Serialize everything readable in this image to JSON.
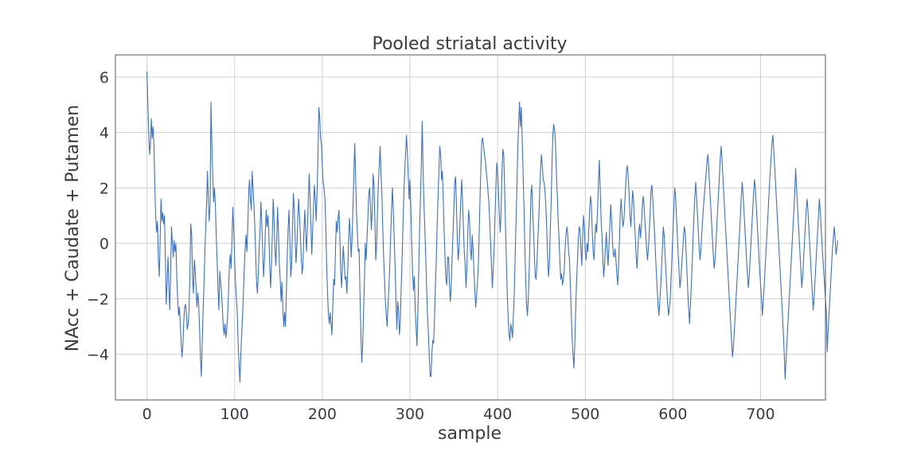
{
  "chart_data": {
    "type": "line",
    "title": "Pooled striatal activity",
    "xlabel": "sample",
    "ylabel": "NAcc + Caudate + Putamen",
    "xlim": [
      -36,
      774
    ],
    "ylim": [
      -5.65,
      6.8
    ],
    "x_ticks": [
      0,
      100,
      200,
      300,
      400,
      500,
      600,
      700
    ],
    "y_ticks": [
      -4,
      -2,
      0,
      2,
      4,
      6
    ],
    "y_tick_labels": [
      "−4",
      "−2",
      "0",
      "2",
      "4",
      "6"
    ],
    "grid": true,
    "line_color": "#3a72c4",
    "x_start": 0,
    "x_step": 1,
    "series": [
      {
        "name": "",
        "values": [
          6.2,
          5.0,
          4.0,
          3.2,
          3.6,
          4.5,
          3.8,
          4.2,
          3.5,
          2.0,
          0.9,
          0.4,
          0.8,
          -0.6,
          -1.2,
          0.1,
          1.6,
          0.8,
          1.1,
          0.7,
          1.0,
          -0.6,
          -2.2,
          -1.4,
          -0.5,
          -1.6,
          -2.4,
          -1.0,
          0.6,
          0.0,
          -0.5,
          0.1,
          -0.3,
          0.0,
          -1.2,
          -2.0,
          -2.6,
          -2.3,
          -2.9,
          -3.6,
          -4.1,
          -3.6,
          -2.8,
          -2.3,
          -2.2,
          -2.6,
          -3.1,
          -2.9,
          -2.4,
          -1.1,
          0.7,
          0.3,
          -1.3,
          -1.8,
          -0.6,
          -1.0,
          -1.6,
          -2.3,
          -1.8,
          -2.2,
          -3.1,
          -4.1,
          -4.8,
          -3.6,
          -2.5,
          -1.5,
          -0.4,
          0.6,
          1.4,
          2.6,
          1.6,
          0.8,
          1.4,
          5.1,
          3.6,
          2.5,
          1.5,
          2.0,
          1.4,
          0.3,
          -0.6,
          -1.6,
          -2.4,
          -1.0,
          -1.4,
          -1.8,
          -2.3,
          -3.0,
          -3.3,
          -2.9,
          -3.4,
          -3.1,
          -2.6,
          -1.8,
          -0.8,
          -0.4,
          -0.9,
          0.2,
          1.3,
          0.5,
          -0.6,
          -1.4,
          -2.0,
          -2.5,
          -3.6,
          -4.3,
          -5.0,
          -4.1,
          -3.3,
          -2.6,
          -1.8,
          -0.9,
          -0.2,
          0.3,
          -0.3,
          0.6,
          1.8,
          2.3,
          1.6,
          1.2,
          2.6,
          2.0,
          1.4,
          0.6,
          -0.4,
          -1.4,
          -1.8,
          -1.1,
          -0.2,
          0.5,
          1.5,
          0.7,
          -0.3,
          -1.2,
          -0.6,
          0.4,
          1.2,
          0.6,
          1.0,
          0.4,
          -0.8,
          -1.6,
          -0.8,
          0.3,
          1.6,
          0.9,
          -0.2,
          -0.8,
          0.1,
          1.3,
          0.4,
          -0.7,
          -1.3,
          -2.1,
          -1.4,
          -2.3,
          -3.0,
          -2.5,
          -3.0,
          -1.8,
          -0.5,
          0.5,
          1.2,
          0.1,
          -1.2,
          -0.8,
          0.6,
          1.8,
          1.3,
          0.2,
          -0.7,
          -0.1,
          0.9,
          1.6,
          1.0,
          0.3,
          -0.5,
          -1.1,
          -0.8,
          0.4,
          1.2,
          0.4,
          -0.3,
          0.6,
          1.5,
          2.5,
          1.7,
          0.6,
          -0.4,
          0.5,
          1.3,
          2.1,
          1.6,
          0.8,
          1.8,
          3.0,
          4.9,
          4.6,
          3.8,
          3.6,
          2.8,
          2.2,
          2.0,
          1.6,
          0.6,
          -0.8,
          -1.8,
          -2.6,
          -2.9,
          -2.5,
          -2.9,
          -3.3,
          -2.2,
          -1.3,
          -1.5,
          -0.3,
          0.8,
          0.4,
          0.9,
          1.2,
          0.3,
          -1.0,
          -1.6,
          -0.7,
          -0.1,
          -0.7,
          -1.3,
          -1.2,
          -1.8,
          -1.0,
          0.1,
          0.9,
          0.3,
          -0.5,
          0.2,
          1.3,
          2.5,
          3.6,
          2.4,
          1.1,
          0.4,
          -0.3,
          -0.2,
          -1.8,
          -3.2,
          -4.3,
          -3.7,
          -2.6,
          -1.4,
          0.0,
          -0.6,
          0.2,
          0.9,
          1.8,
          2.0,
          1.3,
          0.5,
          1.2,
          2.5,
          2.1,
          0.8,
          -0.6,
          0.0,
          1.2,
          2.2,
          2.8,
          3.5,
          2.5,
          1.8,
          0.5,
          -0.5,
          -1.3,
          -2.1,
          -2.6,
          -3.0,
          -2.2,
          -1.6,
          -0.8,
          0.3,
          1.2,
          2.0,
          1.2,
          0.2,
          -0.8,
          -2.0,
          -3.1,
          -2.1,
          -2.4,
          -3.3,
          -2.8,
          -1.6,
          -0.6,
          0.6,
          1.7,
          2.6,
          3.2,
          3.9,
          3.3,
          2.5,
          1.6,
          2.3,
          1.3,
          0.0,
          -1.0,
          -1.7,
          -1.2,
          -2.4,
          -3.0,
          -3.7,
          -2.5,
          -1.0,
          0.5,
          1.7,
          2.9,
          4.4,
          2.6,
          1.4,
          0.5,
          -0.5,
          -1.6,
          -2.6,
          -3.2,
          -4.0,
          -4.8,
          -4.8,
          -4.0,
          -3.5,
          -3.6,
          -2.7,
          -1.6,
          -0.6,
          0.6,
          1.6,
          2.6,
          3.5,
          3.2,
          2.3,
          2.6,
          1.6,
          0.4,
          -0.5,
          -1.3,
          -1.5,
          -0.5,
          -0.5,
          -1.4,
          -2.1,
          -1.6,
          -0.6,
          0.3,
          1.1,
          2.2,
          2.4,
          1.4,
          0.2,
          -0.6,
          -0.2,
          0.7,
          1.6,
          2.3,
          1.5,
          0.5,
          -0.3,
          -0.8,
          -1.6,
          -0.8,
          0.4,
          1.2,
          0.8,
          -0.2,
          -0.6,
          0.3,
          -0.2,
          -1.0,
          -1.7,
          -2.3,
          -1.9,
          -1.4,
          -0.8,
          0.4,
          1.7,
          2.8,
          3.7,
          3.8,
          3.5,
          3.2,
          3.0,
          2.6,
          2.3,
          1.9,
          1.5,
          0.8,
          0.0,
          -0.8,
          -1.6,
          -0.9,
          -0.2,
          0.9,
          2.0,
          2.9,
          2.6,
          1.8,
          1.0,
          0.4,
          1.2,
          2.6,
          3.4,
          3.2,
          2.0,
          0.6,
          -0.6,
          -1.8,
          -2.7,
          -3.3,
          -3.5,
          -2.9,
          -3.1,
          -3.4,
          -2.6,
          -1.8,
          -0.5,
          0.8,
          2.0,
          3.4,
          4.3,
          5.1,
          4.2,
          4.9,
          3.8,
          2.6,
          1.4,
          0.0,
          -1.3,
          -2.2,
          -2.6,
          -2.0,
          -1.0,
          0.3,
          1.8,
          2.1,
          1.2,
          0.4,
          -0.5,
          -1.2,
          -1.3,
          -0.6,
          0.2,
          0.9,
          1.9,
          2.7,
          3.2,
          2.8,
          2.3,
          2.2,
          1.9,
          1.4,
          0.6,
          -0.4,
          -1.2,
          -0.8,
          0.4,
          1.4,
          2.8,
          3.9,
          4.3,
          4.1,
          3.6,
          2.6,
          1.8,
          0.9,
          0.2,
          -0.6,
          -1.3,
          -1.1,
          -1.5,
          -1.3,
          -1.0,
          -0.2,
          0.3,
          0.6,
          0.3,
          -0.3,
          -0.6,
          -1.5,
          -2.5,
          -3.4,
          -4.0,
          -4.5,
          -3.7,
          -2.5,
          -1.4,
          -0.7,
          0.1,
          0.6,
          0.5,
          -0.2,
          -0.8,
          0.2,
          1.0,
          0.6,
          -0.3,
          -0.6,
          0.0,
          -0.3,
          0.5,
          1.2,
          1.7,
          1.4,
          0.4,
          -0.3,
          -0.6,
          0.2,
          0.7,
          0.4,
          1.2,
          2.2,
          3.0,
          2.0,
          0.9,
          0.3,
          -0.5,
          -1.2,
          -0.8,
          -0.1,
          0.4,
          -0.3,
          -0.8,
          -0.1,
          0.6,
          1.4,
          0.9,
          0.1,
          -0.4,
          -0.5,
          -0.2,
          -0.6,
          -1.1,
          -1.5,
          -0.8,
          0.1,
          1.2,
          1.6,
          1.0,
          0.6,
          0.8,
          1.4,
          2.0,
          2.6,
          2.8,
          2.4,
          1.8,
          1.0,
          0.6,
          1.2,
          1.9,
          1.6,
          0.8,
          0.3,
          -0.4,
          -0.9,
          -0.3,
          0.4,
          0.7,
          0.2,
          0.6,
          1.3,
          1.7,
          1.4,
          0.8,
          0.3,
          -0.2,
          -0.6,
          -0.2,
          0.4,
          1.1,
          1.9,
          2.1,
          1.6,
          1.0,
          0.4,
          -0.3,
          -1.0,
          -1.6,
          -2.2,
          -2.6,
          -2.1,
          -1.6,
          -0.9,
          -0.2,
          0.6,
          0.3,
          -0.4,
          -1.0,
          -1.6,
          -2.2,
          -2.6,
          -2.3,
          -2.0,
          -1.2,
          -0.4,
          0.4,
          1.2,
          2.0,
          1.7,
          1.0,
          0.3,
          -0.4,
          -1.0,
          -1.6,
          -1.3,
          -0.8,
          -0.3,
          0.2,
          0.6,
          0.4,
          -0.3,
          -1.0,
          -1.8,
          -2.4,
          -2.9,
          -2.2,
          -1.5,
          -0.7,
          0.2,
          1.0,
          1.7,
          2.2,
          1.7,
          1.0,
          0.4,
          -0.2,
          -0.6,
          -0.2,
          0.4,
          0.9,
          1.4,
          1.8,
          2.2,
          2.6,
          3.0,
          3.2,
          2.6,
          2.0,
          1.4,
          0.8,
          0.2,
          -0.4,
          -0.9,
          -0.6,
          -0.1,
          0.6,
          1.2,
          1.8,
          2.4,
          3.1,
          3.5,
          3.0,
          2.4,
          1.8,
          1.2,
          0.6,
          0.0,
          -0.6,
          -1.2,
          -1.8,
          -2.4,
          -3.0,
          -3.6,
          -4.1,
          -3.7,
          -3.2,
          -2.6,
          -2.0,
          -1.4,
          -0.8,
          -0.2,
          0.4,
          1.0,
          1.7,
          2.2,
          1.8,
          1.2,
          0.6,
          0.0,
          -0.6,
          -1.1,
          -1.6,
          -1.2,
          -0.6,
          0.0,
          0.6,
          1.2,
          1.8,
          2.3,
          2.0,
          1.4,
          0.8,
          0.2,
          -0.4,
          -1.0,
          -1.5,
          -2.0,
          -2.6,
          -2.1,
          -1.6,
          -1.0,
          -0.4,
          0.2,
          0.8,
          1.4,
          2.0,
          2.6,
          3.1,
          3.6,
          3.9,
          3.4,
          2.8,
          2.2,
          1.6,
          1.0,
          0.4,
          -0.2,
          -0.8,
          -1.4,
          -2.0,
          -2.6,
          -3.3,
          -4.0,
          -4.9,
          -4.2,
          -3.6,
          -3.0,
          -2.4,
          -1.8,
          -1.2,
          -0.6,
          0.0,
          0.6,
          1.2,
          1.9,
          2.7,
          2.0,
          1.4,
          0.8,
          0.2,
          -0.4,
          -1.0,
          -1.6,
          -1.2,
          -0.6,
          0.0,
          0.6,
          1.2,
          1.6,
          1.2,
          0.6,
          0.0,
          -0.6,
          -1.2,
          -1.8,
          -2.4,
          -2.0,
          -1.4,
          -0.8,
          -0.2,
          0.4,
          1.0,
          1.6,
          1.2,
          0.6,
          0.0,
          -0.5,
          -1.0,
          -1.5,
          -2.0,
          -2.5,
          -3.9,
          -3.2,
          -2.6,
          -2.0,
          -1.4,
          -0.8,
          -0.2,
          0.2,
          0.6,
          0.2,
          -0.4,
          -0.2,
          0.1
        ]
      }
    ]
  }
}
